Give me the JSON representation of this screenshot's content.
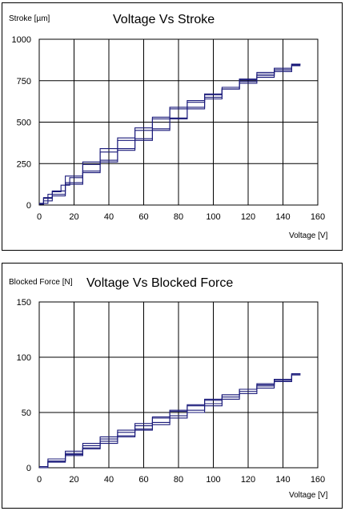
{
  "colors": {
    "series": "#1a1a7a",
    "grid": "#000000",
    "frame": "#000000"
  },
  "chart_data": [
    {
      "type": "line",
      "title": "Voltage Vs Stroke",
      "xlabel": "Voltage [V]",
      "ylabel": "Stroke [µm]",
      "xlim": [
        0,
        160
      ],
      "ylim": [
        0,
        1000
      ],
      "xticks": [
        0,
        20,
        40,
        60,
        80,
        100,
        120,
        140,
        160
      ],
      "yticks": [
        0,
        250,
        500,
        750,
        1000
      ],
      "grid": true,
      "legend": "none",
      "series": [
        {
          "x": [
            0,
            5,
            10,
            15,
            20,
            30,
            40,
            50,
            60,
            70,
            80,
            90,
            100,
            110,
            120,
            130,
            140,
            150
          ],
          "values": [
            5,
            40,
            80,
            120,
            165,
            245,
            320,
            390,
            450,
            520,
            580,
            620,
            665,
            700,
            735,
            770,
            805,
            840
          ]
        },
        {
          "x": [
            150,
            140,
            130,
            120,
            110,
            100,
            90,
            80,
            70,
            60,
            50,
            40,
            30,
            20,
            10,
            5,
            0
          ],
          "values": [
            845,
            815,
            790,
            755,
            700,
            640,
            580,
            520,
            450,
            390,
            330,
            260,
            195,
            125,
            55,
            25,
            5
          ]
        },
        {
          "x": [
            0,
            5,
            10,
            20,
            30,
            40,
            50,
            60,
            70,
            80,
            90,
            100,
            110,
            120,
            130,
            140,
            150
          ],
          "values": [
            10,
            45,
            85,
            175,
            260,
            340,
            405,
            465,
            530,
            590,
            630,
            670,
            700,
            745,
            780,
            815,
            850
          ]
        },
        {
          "x": [
            150,
            140,
            130,
            120,
            110,
            100,
            90,
            80,
            70,
            60,
            50,
            40,
            30,
            20,
            10,
            0
          ],
          "values": [
            850,
            825,
            800,
            760,
            710,
            650,
            590,
            525,
            460,
            400,
            340,
            270,
            205,
            135,
            65,
            10
          ]
        }
      ]
    },
    {
      "type": "line",
      "title": "Voltage Vs Blocked Force",
      "xlabel": "Voltage [V]",
      "ylabel": "Blocked Force [N]",
      "xlim": [
        0,
        160
      ],
      "ylim": [
        0,
        150
      ],
      "xticks": [
        0,
        20,
        40,
        60,
        80,
        100,
        120,
        140,
        160
      ],
      "yticks": [
        0,
        50,
        100,
        150
      ],
      "grid": true,
      "legend": "none",
      "series": [
        {
          "x": [
            0,
            10,
            20,
            30,
            40,
            50,
            60,
            70,
            80,
            90,
            100,
            110,
            120,
            130,
            140,
            150
          ],
          "values": [
            1,
            8,
            15,
            22,
            28,
            34,
            40,
            46,
            52,
            57,
            62,
            66,
            71,
            75,
            80,
            85
          ]
        },
        {
          "x": [
            150,
            140,
            130,
            120,
            110,
            100,
            90,
            80,
            70,
            60,
            50,
            40,
            30,
            20,
            10,
            0
          ],
          "values": [
            85,
            78,
            72,
            67,
            62,
            56,
            50,
            45,
            39,
            34,
            28,
            22,
            17,
            11,
            5,
            0
          ]
        },
        {
          "x": [
            0,
            10,
            20,
            30,
            40,
            50,
            60,
            70,
            80,
            90,
            100,
            110,
            120,
            130,
            140,
            150
          ],
          "values": [
            0,
            6,
            13,
            20,
            26,
            32,
            38,
            45,
            51,
            56,
            61,
            66,
            71,
            76,
            80,
            84
          ]
        },
        {
          "x": [
            150,
            140,
            130,
            120,
            110,
            100,
            90,
            80,
            70,
            60,
            50,
            40,
            30,
            20,
            10,
            0
          ],
          "values": [
            84,
            79,
            74,
            69,
            64,
            58,
            52,
            47,
            41,
            35,
            29,
            24,
            18,
            12,
            6,
            1
          ]
        }
      ]
    }
  ]
}
